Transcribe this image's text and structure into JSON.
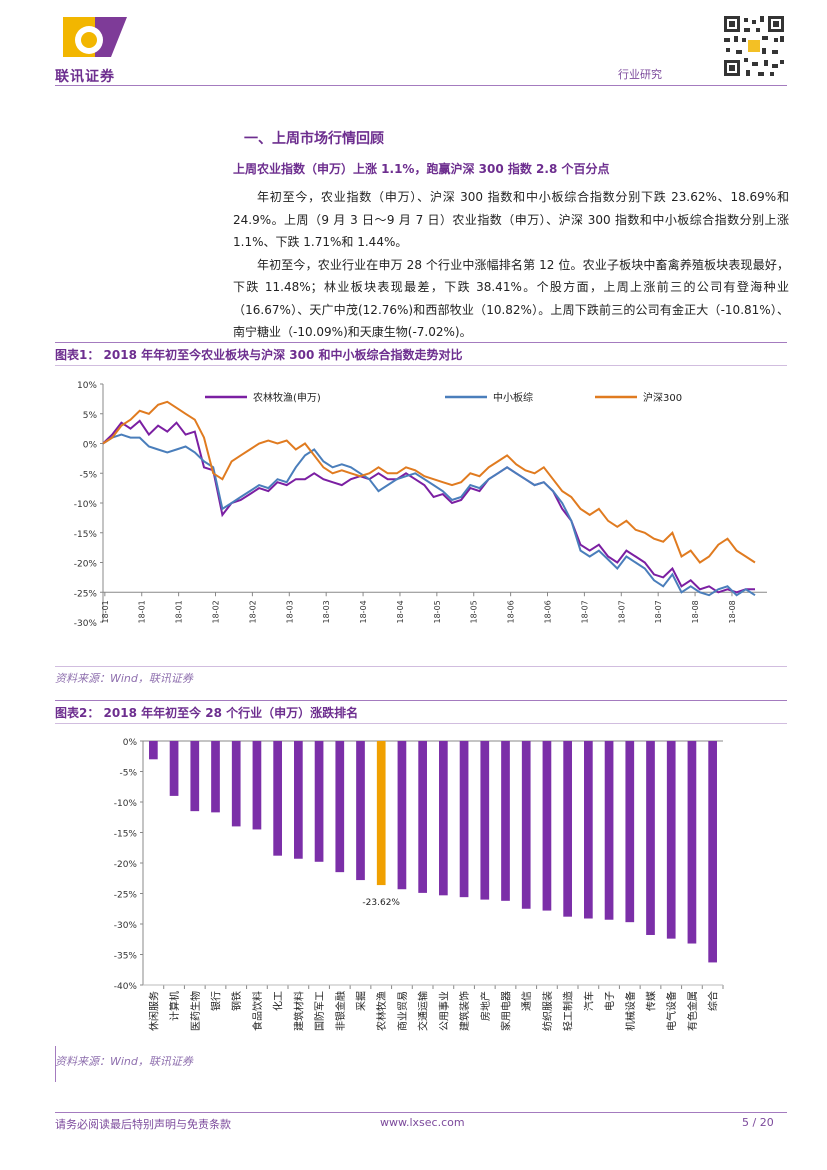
{
  "header": {
    "logo_text": "联讯证券",
    "section": "行业研究"
  },
  "section_title": "一、上周市场行情回顾",
  "subtitle": "上周农业指数（申万）上涨 1.1%，跑赢沪深 300 指数 2.8 个百分点",
  "paragraphs": [
    "年初至今，农业指数（申万）、沪深 300 指数和中小板综合指数分别下跌 23.62%、18.69%和 24.9%。上周（9 月 3 日～9 月 7 日）农业指数（申万）、沪深 300 指数和中小板综合指数分别上涨 1.1%、下跌 1.71%和 1.44%。",
    "年初至今，农业行业在申万 28 个行业中涨幅排名第 12 位。农业子板块中畜禽养殖板块表现最好，下跌 11.48%；林业板块表现最差，下跌 38.41%。个股方面，上周上涨前三的公司有登海种业（16.67%）、天广中茂(12.76%)和西部牧业（10.82%）。上周下跌前三的公司有金正大（-10.81%）、南宁糖业（-10.09%)和天康生物(-7.02%)。"
  ],
  "figure1": {
    "caption": "图表1：  2018 年年初至今农业板块与沪深 300 和中小板综合指数走势对比",
    "source": "资料来源：Wind，联讯证券"
  },
  "figure2": {
    "caption": "图表2：  2018 年年初至今 28 个行业（申万）涨跌排名",
    "source": "资料来源：Wind，联讯证券"
  },
  "footer": {
    "disclaimer": "请务必阅读最后特别声明与免责条款",
    "url": "www.lxsec.com",
    "page": "5 / 20"
  },
  "chart_data": [
    {
      "type": "line",
      "ylim": [
        -30,
        10
      ],
      "yticks": [
        "10%",
        "5%",
        "0%",
        "-5%",
        "-10%",
        "-15%",
        "-20%",
        "-25%",
        "-30%"
      ],
      "x_tick_labels": [
        "18-01",
        "18-01",
        "18-01",
        "18-02",
        "18-02",
        "18-03",
        "18-03",
        "18-04",
        "18-04",
        "18-05",
        "18-05",
        "18-06",
        "18-06",
        "18-07",
        "18-07",
        "18-07",
        "18-08",
        "18-08"
      ],
      "series": [
        {
          "name": "农林牧渔(申万)",
          "color": "#7b1fa2",
          "values": [
            0,
            1.5,
            3.5,
            2.5,
            3.8,
            1.5,
            3,
            2,
            3.5,
            1.5,
            2,
            -4,
            -4.5,
            -12,
            -10,
            -9.5,
            -8.5,
            -7.5,
            -8,
            -6.5,
            -7,
            -6,
            -6,
            -5,
            -6,
            -6.5,
            -7,
            -6,
            -5.5,
            -6,
            -5,
            -6,
            -6,
            -5,
            -6,
            -7,
            -9,
            -8.5,
            -10,
            -9.5,
            -7.5,
            -8,
            -6,
            -5,
            -4,
            -5,
            -6,
            -7,
            -6.5,
            -8,
            -11,
            -13,
            -17,
            -18,
            -17,
            -19,
            -20,
            -18,
            -19,
            -20,
            -22,
            -22.5,
            -21,
            -24,
            -23,
            -24.5,
            -24,
            -25,
            -24.5,
            -25,
            -24.5,
            -24.5
          ]
        },
        {
          "name": "中小板综",
          "color": "#4a7ebb",
          "values": [
            0,
            1,
            1.5,
            1,
            1,
            -0.5,
            -1,
            -1.5,
            -1,
            -0.5,
            -1.5,
            -3,
            -4,
            -11,
            -10,
            -9,
            -8,
            -7,
            -7.5,
            -6,
            -6.5,
            -4,
            -2,
            -1,
            -3,
            -4,
            -3.5,
            -4,
            -5,
            -6,
            -8,
            -7,
            -6,
            -5.5,
            -5,
            -6,
            -7,
            -8,
            -9.5,
            -9,
            -7,
            -7.5,
            -6,
            -5,
            -4,
            -5,
            -6,
            -7,
            -6.5,
            -8,
            -10,
            -13,
            -18,
            -19,
            -18,
            -19.5,
            -21,
            -19,
            -20,
            -21,
            -23,
            -24,
            -22,
            -25,
            -24,
            -25,
            -25.5,
            -24.5,
            -24,
            -25.5,
            -24.5,
            -25.5
          ]
        },
        {
          "name": "沪深300",
          "color": "#e07b20",
          "values": [
            0,
            1,
            3,
            4,
            5.5,
            5,
            6.5,
            7,
            6,
            5,
            4,
            1,
            -5,
            -6,
            -3,
            -2,
            -1,
            0,
            0.5,
            0,
            0.5,
            -1,
            0,
            -2,
            -4,
            -5,
            -4.5,
            -5,
            -5.5,
            -5,
            -4,
            -5,
            -5,
            -4,
            -4.5,
            -5.5,
            -6,
            -6.5,
            -7,
            -6.5,
            -5,
            -5.5,
            -4,
            -3,
            -2,
            -3.5,
            -4.5,
            -5,
            -4,
            -6,
            -8,
            -9,
            -11,
            -12,
            -11,
            -13,
            -14,
            -13,
            -14.5,
            -15,
            -16,
            -16.5,
            -15,
            -19,
            -18,
            -20,
            -19,
            -17,
            -16,
            -18,
            -19,
            -20
          ]
        }
      ],
      "legend_position": "top"
    },
    {
      "type": "bar",
      "ylim": [
        -40,
        0
      ],
      "yticks": [
        "0%",
        "-5%",
        "-10%",
        "-15%",
        "-20%",
        "-25%",
        "-30%",
        "-35%",
        "-40%"
      ],
      "categories": [
        "休闲服务",
        "计算机",
        "医药生物",
        "银行",
        "钢铁",
        "食品饮料",
        "化工",
        "建筑材料",
        "国防军工",
        "非银金融",
        "采掘",
        "农林牧渔",
        "商业贸易",
        "交通运输",
        "公用事业",
        "建筑装饰",
        "房地产",
        "家用电器",
        "通信",
        "纺织服装",
        "轻工制造",
        "汽车",
        "电子",
        "机械设备",
        "传媒",
        "电气设备",
        "有色金属",
        "综合"
      ],
      "values": [
        -3,
        -9,
        -11.5,
        -11.7,
        -14,
        -14.5,
        -18.8,
        -19.3,
        -19.8,
        -21.5,
        -22.8,
        -23.62,
        -24.3,
        -24.9,
        -25.3,
        -25.6,
        -26,
        -26.2,
        -27.5,
        -27.8,
        -28.8,
        -29.1,
        -29.3,
        -29.7,
        -31.8,
        -32.4,
        -33.2,
        -36.3
      ],
      "highlight_color": "#f0a000",
      "bar_color": "#7b2fa8",
      "data_labels": {
        "农林牧渔": "-23.62%"
      }
    }
  ]
}
